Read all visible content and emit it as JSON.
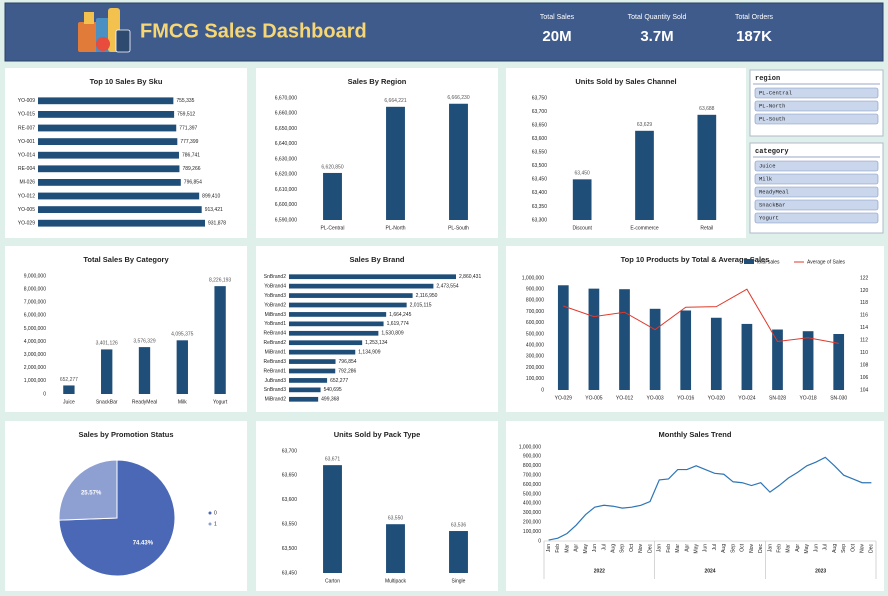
{
  "header": {
    "title": "FMCG Sales Dashboard"
  },
  "kpis": [
    {
      "label": "Total Sales",
      "value": "20M"
    },
    {
      "label": "Total Quantity Sold",
      "value": "3.7M"
    },
    {
      "label": "Total Orders",
      "value": "187K"
    }
  ],
  "slicers": [
    {
      "title": "region",
      "items": [
        "PL-Central",
        "PL-North",
        "PL-South"
      ]
    },
    {
      "title": "category",
      "items": [
        "Juice",
        "Milk",
        "ReadyMeal",
        "SnackBar",
        "Yogurt"
      ]
    }
  ],
  "chart_data": [
    {
      "type": "bar",
      "horizontal": true,
      "title": "Top 10 Sales By Sku",
      "color": "#1f4e79",
      "categories": [
        "YO-009",
        "YO-015",
        "RE-007",
        "YO-001",
        "YO-014",
        "RE-004",
        "MI-026",
        "YO-012",
        "YO-005",
        "YO-029"
      ],
      "values": [
        755335,
        759512,
        771397,
        777399,
        786741,
        789266,
        796854,
        899410,
        913421,
        931878
      ],
      "value_labels": [
        "755,335",
        "759,512",
        "771,397",
        "777,399",
        "786,741",
        "789,266",
        "796,854",
        "899,410",
        "913,421",
        "931,878"
      ]
    },
    {
      "type": "bar",
      "title": "Sales By Region",
      "color": "#1f4e79",
      "categories": [
        "PL-Central",
        "PL-North",
        "PL-South"
      ],
      "values": [
        6620850,
        6664221,
        6666230
      ],
      "value_labels": [
        "6,620,850",
        "6,664,221",
        "6,666,230"
      ],
      "ylim": [
        6590000,
        6670000
      ],
      "yticks": [
        {
          "value": 6590000,
          "label": "6,590,000"
        },
        {
          "value": 6600000,
          "label": "6,600,000"
        },
        {
          "value": 6610000,
          "label": "6,610,000"
        },
        {
          "value": 6620000,
          "label": "6,620,000"
        },
        {
          "value": 6630000,
          "label": "6,630,000"
        },
        {
          "value": 6640000,
          "label": "6,640,000"
        },
        {
          "value": 6650000,
          "label": "6,650,000"
        },
        {
          "value": 6660000,
          "label": "6,660,000"
        },
        {
          "value": 6670000,
          "label": "6,670,000"
        }
      ]
    },
    {
      "type": "bar",
      "title": "Units Sold by Sales Channel",
      "color": "#1f4e79",
      "categories": [
        "Discount",
        "E-commerce",
        "Retail"
      ],
      "values": [
        63450,
        63629,
        63688
      ],
      "value_labels": [
        "63,450",
        "63,629",
        "63,688"
      ],
      "ylim": [
        63300,
        63750
      ],
      "yticks": [
        {
          "value": 63300,
          "label": "63,300"
        },
        {
          "value": 63350,
          "label": "63,350"
        },
        {
          "value": 63400,
          "label": "63,400"
        },
        {
          "value": 63450,
          "label": "63,450"
        },
        {
          "value": 63500,
          "label": "63,500"
        },
        {
          "value": 63550,
          "label": "63,550"
        },
        {
          "value": 63600,
          "label": "63,600"
        },
        {
          "value": 63650,
          "label": "63,650"
        },
        {
          "value": 63700,
          "label": "63,700"
        },
        {
          "value": 63750,
          "label": "63,750"
        }
      ]
    },
    {
      "type": "bar",
      "title": "Total Sales By Category",
      "color": "#1f4e79",
      "categories": [
        "Juice",
        "SnackBar",
        "ReadyMeal",
        "Milk",
        "Yogurt"
      ],
      "values": [
        652277,
        3401126,
        3576329,
        4095375,
        8226193
      ],
      "value_labels": [
        "652,277",
        "3,401,126",
        "3,576,329",
        "4,095,375",
        "8,226,193"
      ],
      "ylim": [
        0,
        9000000
      ],
      "yticks": [
        0,
        {
          "value": 1000000,
          "label": "1,000,000"
        },
        {
          "value": 2000000,
          "label": "2,000,000"
        },
        {
          "value": 3000000,
          "label": "3,000,000"
        },
        {
          "value": 4000000,
          "label": "4,000,000"
        },
        {
          "value": 5000000,
          "label": "5,000,000"
        },
        {
          "value": 6000000,
          "label": "6,000,000"
        },
        {
          "value": 7000000,
          "label": "7,000,000"
        },
        {
          "value": 8000000,
          "label": "8,000,000"
        },
        {
          "value": 9000000,
          "label": "9,000,000"
        }
      ]
    },
    {
      "type": "bar",
      "horizontal": true,
      "title": "Sales By Brand",
      "color": "#1f4e79",
      "categories": [
        "SnBrand2",
        "YoBrand4",
        "YoBrand3",
        "YoBrand2",
        "MiBrand3",
        "YoBrand1",
        "ReBrand4",
        "ReBrand2",
        "MiBrand1",
        "ReBrand3",
        "ReBrand1",
        "JuBrand3",
        "SnBrand3",
        "MiBrand2"
      ],
      "values": [
        2860431,
        2473554,
        2116950,
        2015115,
        1664245,
        1619774,
        1530809,
        1253134,
        1134909,
        796854,
        792286,
        652277,
        540695,
        499368
      ],
      "value_labels": [
        "2,860,431",
        "2,473,554",
        "2,116,950",
        "2,015,115",
        "1,664,245",
        "1,619,774",
        "1,530,809",
        "1,253,134",
        "1,134,909",
        "796,854",
        "792,286",
        "652,277",
        "540,695",
        "499,368"
      ]
    },
    {
      "type": "combo",
      "title": "Top 10 Products by Total & Average Sales",
      "categories": [
        "YO-029",
        "YO-005",
        "YO-012",
        "YO-003",
        "YO-016",
        "YO-020",
        "YO-024",
        "SN-028",
        "YO-018",
        "SN-030"
      ],
      "series": [
        {
          "name": "total sales",
          "color": "#1f4e79",
          "values": [
            935000,
            905000,
            900000,
            725000,
            710000,
            645000,
            590000,
            540000,
            525000,
            500000
          ]
        },
        {
          "name": "Average of Sales",
          "color": "#e0392b",
          "axis": "y2",
          "values": [
            117.5,
            115.8,
            116.5,
            113.7,
            117.3,
            117.4,
            120.2,
            111.8,
            112.4,
            111.5
          ]
        }
      ],
      "ylim": [
        0,
        1000000
      ],
      "yticks": [
        0,
        {
          "value": 100000,
          "label": "100,000"
        },
        {
          "value": 200000,
          "label": "200,000"
        },
        {
          "value": 300000,
          "label": "300,000"
        },
        {
          "value": 400000,
          "label": "400,000"
        },
        {
          "value": 500000,
          "label": "500,000"
        },
        {
          "value": 600000,
          "label": "600,000"
        },
        {
          "value": 700000,
          "label": "700,000"
        },
        {
          "value": 800000,
          "label": "800,000"
        },
        {
          "value": 900000,
          "label": "900,000"
        },
        {
          "value": 1000000,
          "label": "1,000,000"
        }
      ],
      "y2lim": [
        104,
        122
      ],
      "y2ticks": [
        104,
        106,
        108,
        110,
        112,
        114,
        116,
        118,
        120,
        122
      ]
    },
    {
      "type": "pie",
      "title": "Sales by Promotion Status",
      "categories": [
        "0",
        "1"
      ],
      "values": [
        74.43,
        25.57
      ],
      "value_labels": [
        "74.43%",
        "25.57%"
      ],
      "colors": [
        "#4a68b5",
        "#8e9fd2"
      ]
    },
    {
      "type": "bar",
      "title": "Units Sold by Pack Type",
      "color": "#1f4e79",
      "categories": [
        "Carton",
        "Multipack",
        "Single"
      ],
      "values": [
        63671,
        63550,
        63536
      ],
      "value_labels": [
        "63,671",
        "63,550",
        "63,536"
      ],
      "ylim": [
        63450,
        63700
      ],
      "yticks": [
        {
          "value": 63450,
          "label": "63,450"
        },
        {
          "value": 63500,
          "label": "63,500"
        },
        {
          "value": 63550,
          "label": "63,550"
        },
        {
          "value": 63600,
          "label": "63,600"
        },
        {
          "value": 63650,
          "label": "63,650"
        },
        {
          "value": 63700,
          "label": "63,700"
        }
      ]
    },
    {
      "type": "line",
      "title": "Monthly Sales Trend",
      "color": "#2e75b6",
      "categories": [
        "Jan",
        "Feb",
        "Mar",
        "Apr",
        "May",
        "Jun",
        "Jul",
        "Aug",
        "Sep",
        "Oct",
        "Nov",
        "Dec",
        "Jan",
        "Feb",
        "Mar",
        "Apr",
        "May",
        "Jun",
        "Jul",
        "Aug",
        "Sep",
        "Oct",
        "Nov",
        "Dec",
        "Jan",
        "Feb",
        "Mar",
        "Apr",
        "May",
        "Jun",
        "Jul",
        "Aug",
        "Sep",
        "Oct",
        "Nov",
        "Dec"
      ],
      "category_groups": [
        "2022",
        "2024",
        "2023"
      ],
      "values": [
        10000,
        30000,
        80000,
        170000,
        280000,
        360000,
        380000,
        370000,
        350000,
        360000,
        380000,
        420000,
        650000,
        660000,
        760000,
        760000,
        800000,
        760000,
        720000,
        710000,
        630000,
        620000,
        590000,
        620000,
        520000,
        590000,
        670000,
        730000,
        800000,
        840000,
        890000,
        800000,
        700000,
        660000,
        620000,
        620000
      ],
      "ylim": [
        0,
        1000000
      ],
      "yticks": [
        0,
        {
          "value": 100000,
          "label": "100,000"
        },
        {
          "value": 200000,
          "label": "200,000"
        },
        {
          "value": 300000,
          "label": "300,000"
        },
        {
          "value": 400000,
          "label": "400,000"
        },
        {
          "value": 500000,
          "label": "500,000"
        },
        {
          "value": 600000,
          "label": "600,000"
        },
        {
          "value": 700000,
          "label": "700,000"
        },
        {
          "value": 800000,
          "label": "800,000"
        },
        {
          "value": 900000,
          "label": "900,000"
        },
        {
          "value": 1000000,
          "label": "1,000,000"
        }
      ]
    }
  ]
}
